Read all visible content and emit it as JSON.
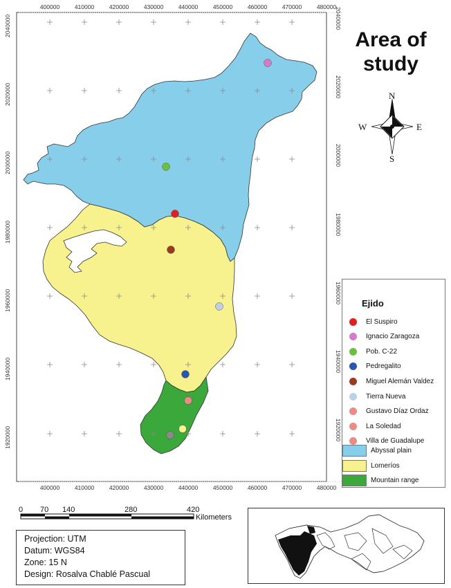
{
  "map": {
    "title": "Area of study",
    "x_ticks": [
      "400000",
      "410000",
      "420000",
      "430000",
      "440000",
      "450000",
      "460000",
      "470000",
      "480000"
    ],
    "y_ticks": [
      "2040000",
      "2020000",
      "2000000",
      "1980000",
      "1960000",
      "1940000",
      "1920000"
    ],
    "compass": {
      "n": "N",
      "s": "S",
      "e": "E",
      "w": "W"
    },
    "colors": {
      "abyssal_plain": "#87ceeb",
      "lomerios": "#f7f28d",
      "mountain_range": "#3aa83a"
    }
  },
  "legend": {
    "title": "Ejido",
    "ejidos": [
      {
        "label": "El Suspiro",
        "color": "#e02020"
      },
      {
        "label": "Ignacio Zaragoza",
        "color": "#d77ac8"
      },
      {
        "label": "Pob. C-22",
        "color": "#6cc13a"
      },
      {
        "label": "Pedregalito",
        "color": "#2a56b0"
      },
      {
        "label": "Miguel Alemán Valdez",
        "color": "#9a3a20"
      },
      {
        "label": "Tierra Nueva",
        "color": "#bcd0ea"
      },
      {
        "label": "Gustavo Díaz Ordaz",
        "color": "#ec8a86"
      },
      {
        "label": "La Soledad",
        "color": "#ec8a86"
      },
      {
        "label": "Villa de Guadalupe",
        "color": "#ec8a86"
      }
    ],
    "regions": [
      {
        "label": "Abyssal plain",
        "color": "#87ceeb"
      },
      {
        "label": "Lomeríos",
        "color": "#f7f28d"
      },
      {
        "label": "Mountain range",
        "color": "#3aa83a"
      }
    ]
  },
  "scale_bar": {
    "labels": [
      "0",
      "70",
      "140",
      "280",
      "420"
    ],
    "unit": "Kilometers"
  },
  "info": {
    "projection": "Projection: UTM",
    "datum": "Datum: WGS84",
    "zone": "Zone: 15 N",
    "design": "Design: Rosalva Chablé Pascual"
  }
}
